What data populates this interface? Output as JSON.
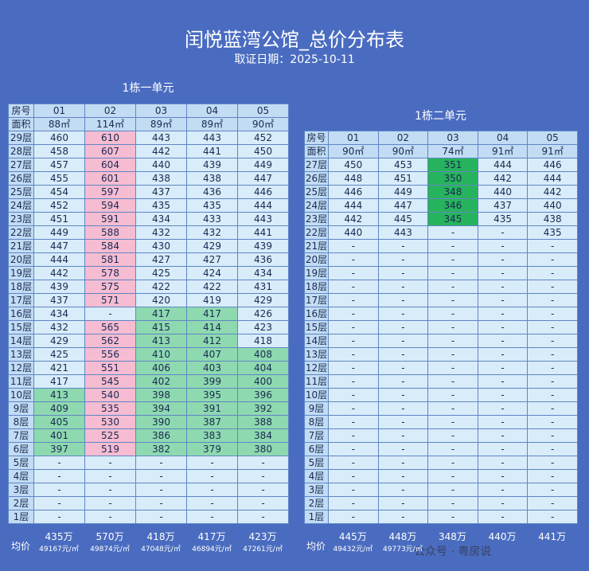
{
  "title": "闰悦蓝湾公馆_总价分布表",
  "subtitle": "取证日期：2025-10-11",
  "unit1": {
    "name": "1栋一单元",
    "header": [
      "房号",
      "01",
      "02",
      "03",
      "04",
      "05"
    ],
    "area": [
      "面积",
      "88㎡",
      "114㎡",
      "89㎡",
      "89㎡",
      "90㎡"
    ],
    "rows": [
      [
        "29层",
        "460",
        "610",
        "443",
        "443",
        "452"
      ],
      [
        "28层",
        "458",
        "607",
        "442",
        "441",
        "450"
      ],
      [
        "27层",
        "457",
        "604",
        "440",
        "439",
        "449"
      ],
      [
        "26层",
        "455",
        "601",
        "438",
        "438",
        "447"
      ],
      [
        "25层",
        "454",
        "597",
        "437",
        "436",
        "446"
      ],
      [
        "24层",
        "452",
        "594",
        "435",
        "435",
        "444"
      ],
      [
        "23层",
        "451",
        "591",
        "434",
        "433",
        "443"
      ],
      [
        "22层",
        "449",
        "588",
        "432",
        "432",
        "441"
      ],
      [
        "21层",
        "447",
        "584",
        "430",
        "429",
        "439"
      ],
      [
        "20层",
        "444",
        "581",
        "427",
        "427",
        "436"
      ],
      [
        "19层",
        "442",
        "578",
        "425",
        "424",
        "434"
      ],
      [
        "18层",
        "439",
        "575",
        "422",
        "422",
        "431"
      ],
      [
        "17层",
        "437",
        "571",
        "420",
        "419",
        "429"
      ],
      [
        "16层",
        "434",
        "-",
        "417",
        "417",
        "426"
      ],
      [
        "15层",
        "432",
        "565",
        "415",
        "414",
        "423"
      ],
      [
        "14层",
        "429",
        "562",
        "413",
        "412",
        "418"
      ],
      [
        "13层",
        "425",
        "556",
        "410",
        "407",
        "408"
      ],
      [
        "12层",
        "421",
        "551",
        "406",
        "403",
        "404"
      ],
      [
        "11层",
        "417",
        "545",
        "402",
        "399",
        "400"
      ],
      [
        "10层",
        "413",
        "540",
        "398",
        "395",
        "396"
      ],
      [
        "9层",
        "409",
        "535",
        "394",
        "391",
        "392"
      ],
      [
        "8层",
        "405",
        "530",
        "390",
        "387",
        "388"
      ],
      [
        "7层",
        "401",
        "525",
        "386",
        "383",
        "384"
      ],
      [
        "6层",
        "397",
        "519",
        "382",
        "379",
        "380"
      ],
      [
        "5层",
        "-",
        "-",
        "-",
        "-",
        "-"
      ],
      [
        "4层",
        "-",
        "-",
        "-",
        "-",
        "-"
      ],
      [
        "3层",
        "-",
        "-",
        "-",
        "-",
        "-"
      ],
      [
        "2层",
        "-",
        "-",
        "-",
        "-",
        "-"
      ],
      [
        "1层",
        "-",
        "-",
        "-",
        "-",
        "-"
      ]
    ],
    "avg_label": "均价",
    "avg": [
      {
        "total": "435万",
        "per_sqm": "49167元/㎡"
      },
      {
        "total": "570万",
        "per_sqm": "49874元/㎡"
      },
      {
        "total": "418万",
        "per_sqm": "47048元/㎡"
      },
      {
        "total": "417万",
        "per_sqm": "46894元/㎡"
      },
      {
        "total": "423万",
        "per_sqm": "47261元/㎡"
      }
    ]
  },
  "unit2": {
    "name": "1栋二单元",
    "header": [
      "房号",
      "01",
      "02",
      "03",
      "04",
      "05"
    ],
    "area": [
      "面积",
      "90㎡",
      "90㎡",
      "74㎡",
      "91㎡",
      "91㎡"
    ],
    "rows": [
      [
        "27层",
        "450",
        "453",
        "351",
        "444",
        "446"
      ],
      [
        "26层",
        "448",
        "451",
        "350",
        "442",
        "444"
      ],
      [
        "25层",
        "446",
        "449",
        "348",
        "440",
        "442"
      ],
      [
        "24层",
        "444",
        "447",
        "346",
        "437",
        "440"
      ],
      [
        "23层",
        "442",
        "445",
        "345",
        "435",
        "438"
      ],
      [
        "22层",
        "440",
        "443",
        "-",
        "-",
        "435"
      ],
      [
        "21层",
        "-",
        "-",
        "-",
        "-",
        "-"
      ],
      [
        "20层",
        "-",
        "-",
        "-",
        "-",
        "-"
      ],
      [
        "19层",
        "-",
        "-",
        "-",
        "-",
        "-"
      ],
      [
        "18层",
        "-",
        "-",
        "-",
        "-",
        "-"
      ],
      [
        "17层",
        "-",
        "-",
        "-",
        "-",
        "-"
      ],
      [
        "16层",
        "-",
        "-",
        "-",
        "-",
        "-"
      ],
      [
        "15层",
        "-",
        "-",
        "-",
        "-",
        "-"
      ],
      [
        "14层",
        "-",
        "-",
        "-",
        "-",
        "-"
      ],
      [
        "13层",
        "-",
        "-",
        "-",
        "-",
        "-"
      ],
      [
        "12层",
        "-",
        "-",
        "-",
        "-",
        "-"
      ],
      [
        "11层",
        "-",
        "-",
        "-",
        "-",
        "-"
      ],
      [
        "10层",
        "-",
        "-",
        "-",
        "-",
        "-"
      ],
      [
        "9层",
        "-",
        "-",
        "-",
        "-",
        "-"
      ],
      [
        "8层",
        "-",
        "-",
        "-",
        "-",
        "-"
      ],
      [
        "7层",
        "-",
        "-",
        "-",
        "-",
        "-"
      ],
      [
        "6层",
        "-",
        "-",
        "-",
        "-",
        "-"
      ],
      [
        "5层",
        "-",
        "-",
        "-",
        "-",
        "-"
      ],
      [
        "4层",
        "-",
        "-",
        "-",
        "-",
        "-"
      ],
      [
        "3层",
        "-",
        "-",
        "-",
        "-",
        "-"
      ],
      [
        "2层",
        "-",
        "-",
        "-",
        "-",
        "-"
      ],
      [
        "1层",
        "-",
        "-",
        "-",
        "-",
        "-"
      ]
    ],
    "avg_label": "均价",
    "avg": [
      {
        "total": "445万",
        "per_sqm": "49432元/㎡"
      },
      {
        "total": "448万",
        "per_sqm": "49773元/㎡"
      },
      {
        "total": "348万"
      },
      {
        "total": "440万"
      },
      {
        "total": "441万"
      }
    ]
  },
  "watermark": "公众号 · 粤房说"
}
